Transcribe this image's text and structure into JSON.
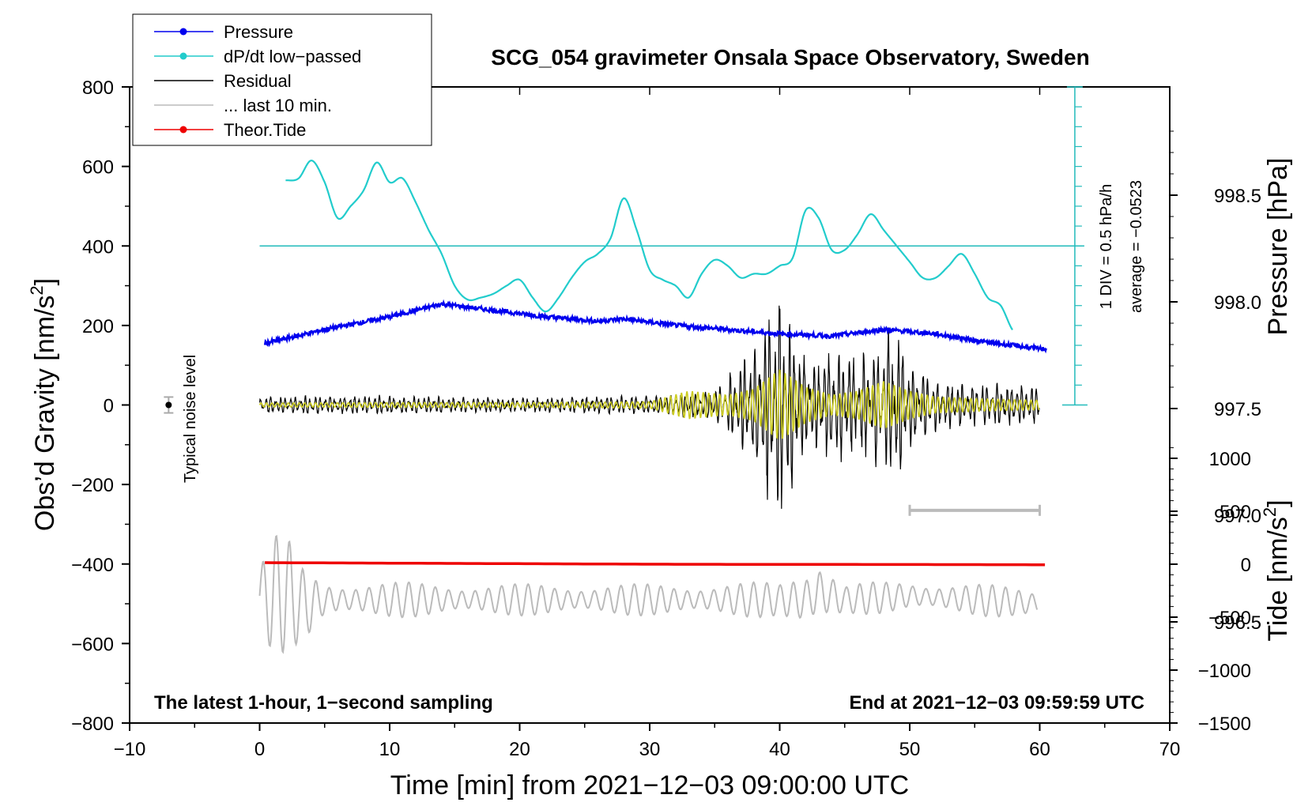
{
  "chart_data": {
    "type": "line",
    "title": "SCG_054 gravimeter Onsala Space Observatory, Sweden",
    "xlabel": "Time [min] from 2021−12−03 09:00:00 UTC",
    "xlim": [
      -10,
      70
    ],
    "xticks": [
      "−10",
      "0",
      "10",
      "20",
      "30",
      "40",
      "50",
      "60",
      "70"
    ],
    "xtick_values": [
      -10,
      0,
      10,
      20,
      30,
      40,
      50,
      60,
      70
    ],
    "left_axis": {
      "label_pre": "Obs’d Gravity [nm/s",
      "label_sup": "2",
      "label_post": "]",
      "ylim": [
        -800,
        800
      ],
      "ticks": [
        "800",
        "600",
        "400",
        "200",
        "0",
        "−200",
        "−400",
        "−600",
        "−800"
      ],
      "tick_values": [
        800,
        600,
        400,
        200,
        0,
        -200,
        -400,
        -600,
        -800
      ]
    },
    "pressure_axis": {
      "label": "Pressure [hPa]",
      "ticks": [
        "998.5",
        "998.0",
        "997.5",
        "997.0",
        "996.5"
      ],
      "tick_values": [
        998.5,
        998.0,
        997.5,
        997.0,
        996.5
      ]
    },
    "tide_axis": {
      "label_pre": "Tide [nm/s",
      "label_sup": "2",
      "label_post": "]",
      "ticks": [
        "1000",
        "500",
        "0",
        "−500",
        "−1000",
        "−1500"
      ],
      "tick_values": [
        1000,
        500,
        0,
        -500,
        -1000,
        -1500
      ]
    },
    "dpdt_scale_label": "1 DIV = 0.5 hPa/h",
    "dpdt_average_label": "average = −0.0523",
    "noise_label": "Typical noise level",
    "footer_left": "The latest 1-hour, 1−second sampling",
    "footer_right": "End at 2021−12−03 09:59:59 UTC",
    "legend": [
      {
        "label": "Pressure",
        "color": "#0000ee",
        "marker": true
      },
      {
        "label": "dP/dt low−passed",
        "color": "#22cccc",
        "marker": true
      },
      {
        "label": "Residual",
        "color": "#000000",
        "marker": false
      },
      {
        "label": "... last 10 min.",
        "color": "#bbbbbb",
        "marker": false
      },
      {
        "label": "Theor.Tide",
        "color": "#ee0000",
        "marker": true
      }
    ],
    "series": [
      {
        "name": "Pressure",
        "color": "#0000ee",
        "axis": "pressure_hPa",
        "x": [
          0,
          5,
          10,
          14,
          18,
          22,
          26,
          28,
          32,
          36,
          40,
          44,
          48,
          52,
          56,
          60
        ],
        "y": [
          997.8,
          997.87,
          997.93,
          997.99,
          997.96,
          997.93,
          997.91,
          997.92,
          997.89,
          997.87,
          997.85,
          997.84,
          997.87,
          997.85,
          997.81,
          997.78
        ]
      },
      {
        "name": "dP/dt low−passed",
        "color": "#22cccc",
        "axis": "gravity_units",
        "x": [
          2,
          3,
          4,
          5,
          6,
          7,
          8,
          9,
          10,
          11,
          12,
          13,
          14,
          15,
          16,
          17,
          18,
          19,
          20,
          21,
          22,
          23,
          24,
          25,
          26,
          27,
          28,
          29,
          30,
          31,
          32,
          33,
          34,
          35,
          36,
          37,
          38,
          39,
          40,
          41,
          42,
          43,
          44,
          45,
          46,
          47,
          48,
          49,
          50,
          51,
          52,
          53,
          54,
          55,
          56,
          57,
          58
        ],
        "y": [
          565,
          570,
          615,
          560,
          470,
          500,
          540,
          610,
          560,
          570,
          510,
          440,
          380,
          300,
          265,
          270,
          280,
          300,
          315,
          270,
          235,
          270,
          320,
          360,
          380,
          420,
          520,
          440,
          340,
          315,
          300,
          270,
          330,
          365,
          350,
          320,
          330,
          330,
          350,
          370,
          490,
          470,
          390,
          390,
          430,
          480,
          440,
          400,
          360,
          320,
          320,
          350,
          380,
          330,
          270,
          250,
          185
        ]
      },
      {
        "name": "Residual",
        "color": "#000000",
        "axis": "gravity",
        "envelope_note": "oscillation amplitude (nm/s2) vs time; peak ~340 near 40 min",
        "x": [
          0,
          10,
          20,
          30,
          35,
          38,
          40,
          42,
          44,
          46,
          48,
          49,
          50,
          52,
          54,
          56,
          60
        ],
        "amplitude": [
          25,
          25,
          20,
          25,
          40,
          160,
          340,
          120,
          160,
          130,
          180,
          220,
          120,
          70,
          60,
          60,
          50
        ]
      },
      {
        "name": "Residual (yellow filtered)",
        "color": "#cccc22",
        "axis": "gravity",
        "x": [
          0,
          10,
          20,
          30,
          33,
          36,
          38,
          40,
          42,
          44,
          46,
          48,
          50,
          52,
          56,
          60
        ],
        "amplitude": [
          5,
          6,
          6,
          8,
          35,
          25,
          40,
          90,
          45,
          25,
          35,
          60,
          35,
          20,
          15,
          12
        ]
      },
      {
        "name": "... last 10 min.",
        "color": "#bbbbbb",
        "axis": "gravity",
        "x": [
          0,
          1,
          2,
          3,
          4,
          5,
          10,
          20,
          30,
          40,
          42,
          43,
          45,
          50,
          55,
          60
        ],
        "center": [
          -480,
          -480,
          -470,
          -500,
          -500,
          -490,
          -490,
          -490,
          -490,
          -490,
          -490,
          -470,
          -490,
          -480,
          -490,
          -500
        ],
        "amplitude": [
          90,
          160,
          150,
          100,
          80,
          50,
          45,
          40,
          40,
          45,
          90,
          100,
          40,
          40,
          40,
          40
        ]
      },
      {
        "name": "Theor.Tide",
        "color": "#ee0000",
        "axis": "tide",
        "x": [
          0,
          10,
          20,
          30,
          40,
          50,
          60
        ],
        "y": [
          15,
          10,
          5,
          0,
          -2,
          -3,
          -5
        ]
      }
    ],
    "noise_bar": {
      "x": -7,
      "y": 0,
      "err": 20
    },
    "grey_scale_bar": {
      "x_start": 50,
      "x_end": 60,
      "y": -265
    },
    "grid": false
  }
}
